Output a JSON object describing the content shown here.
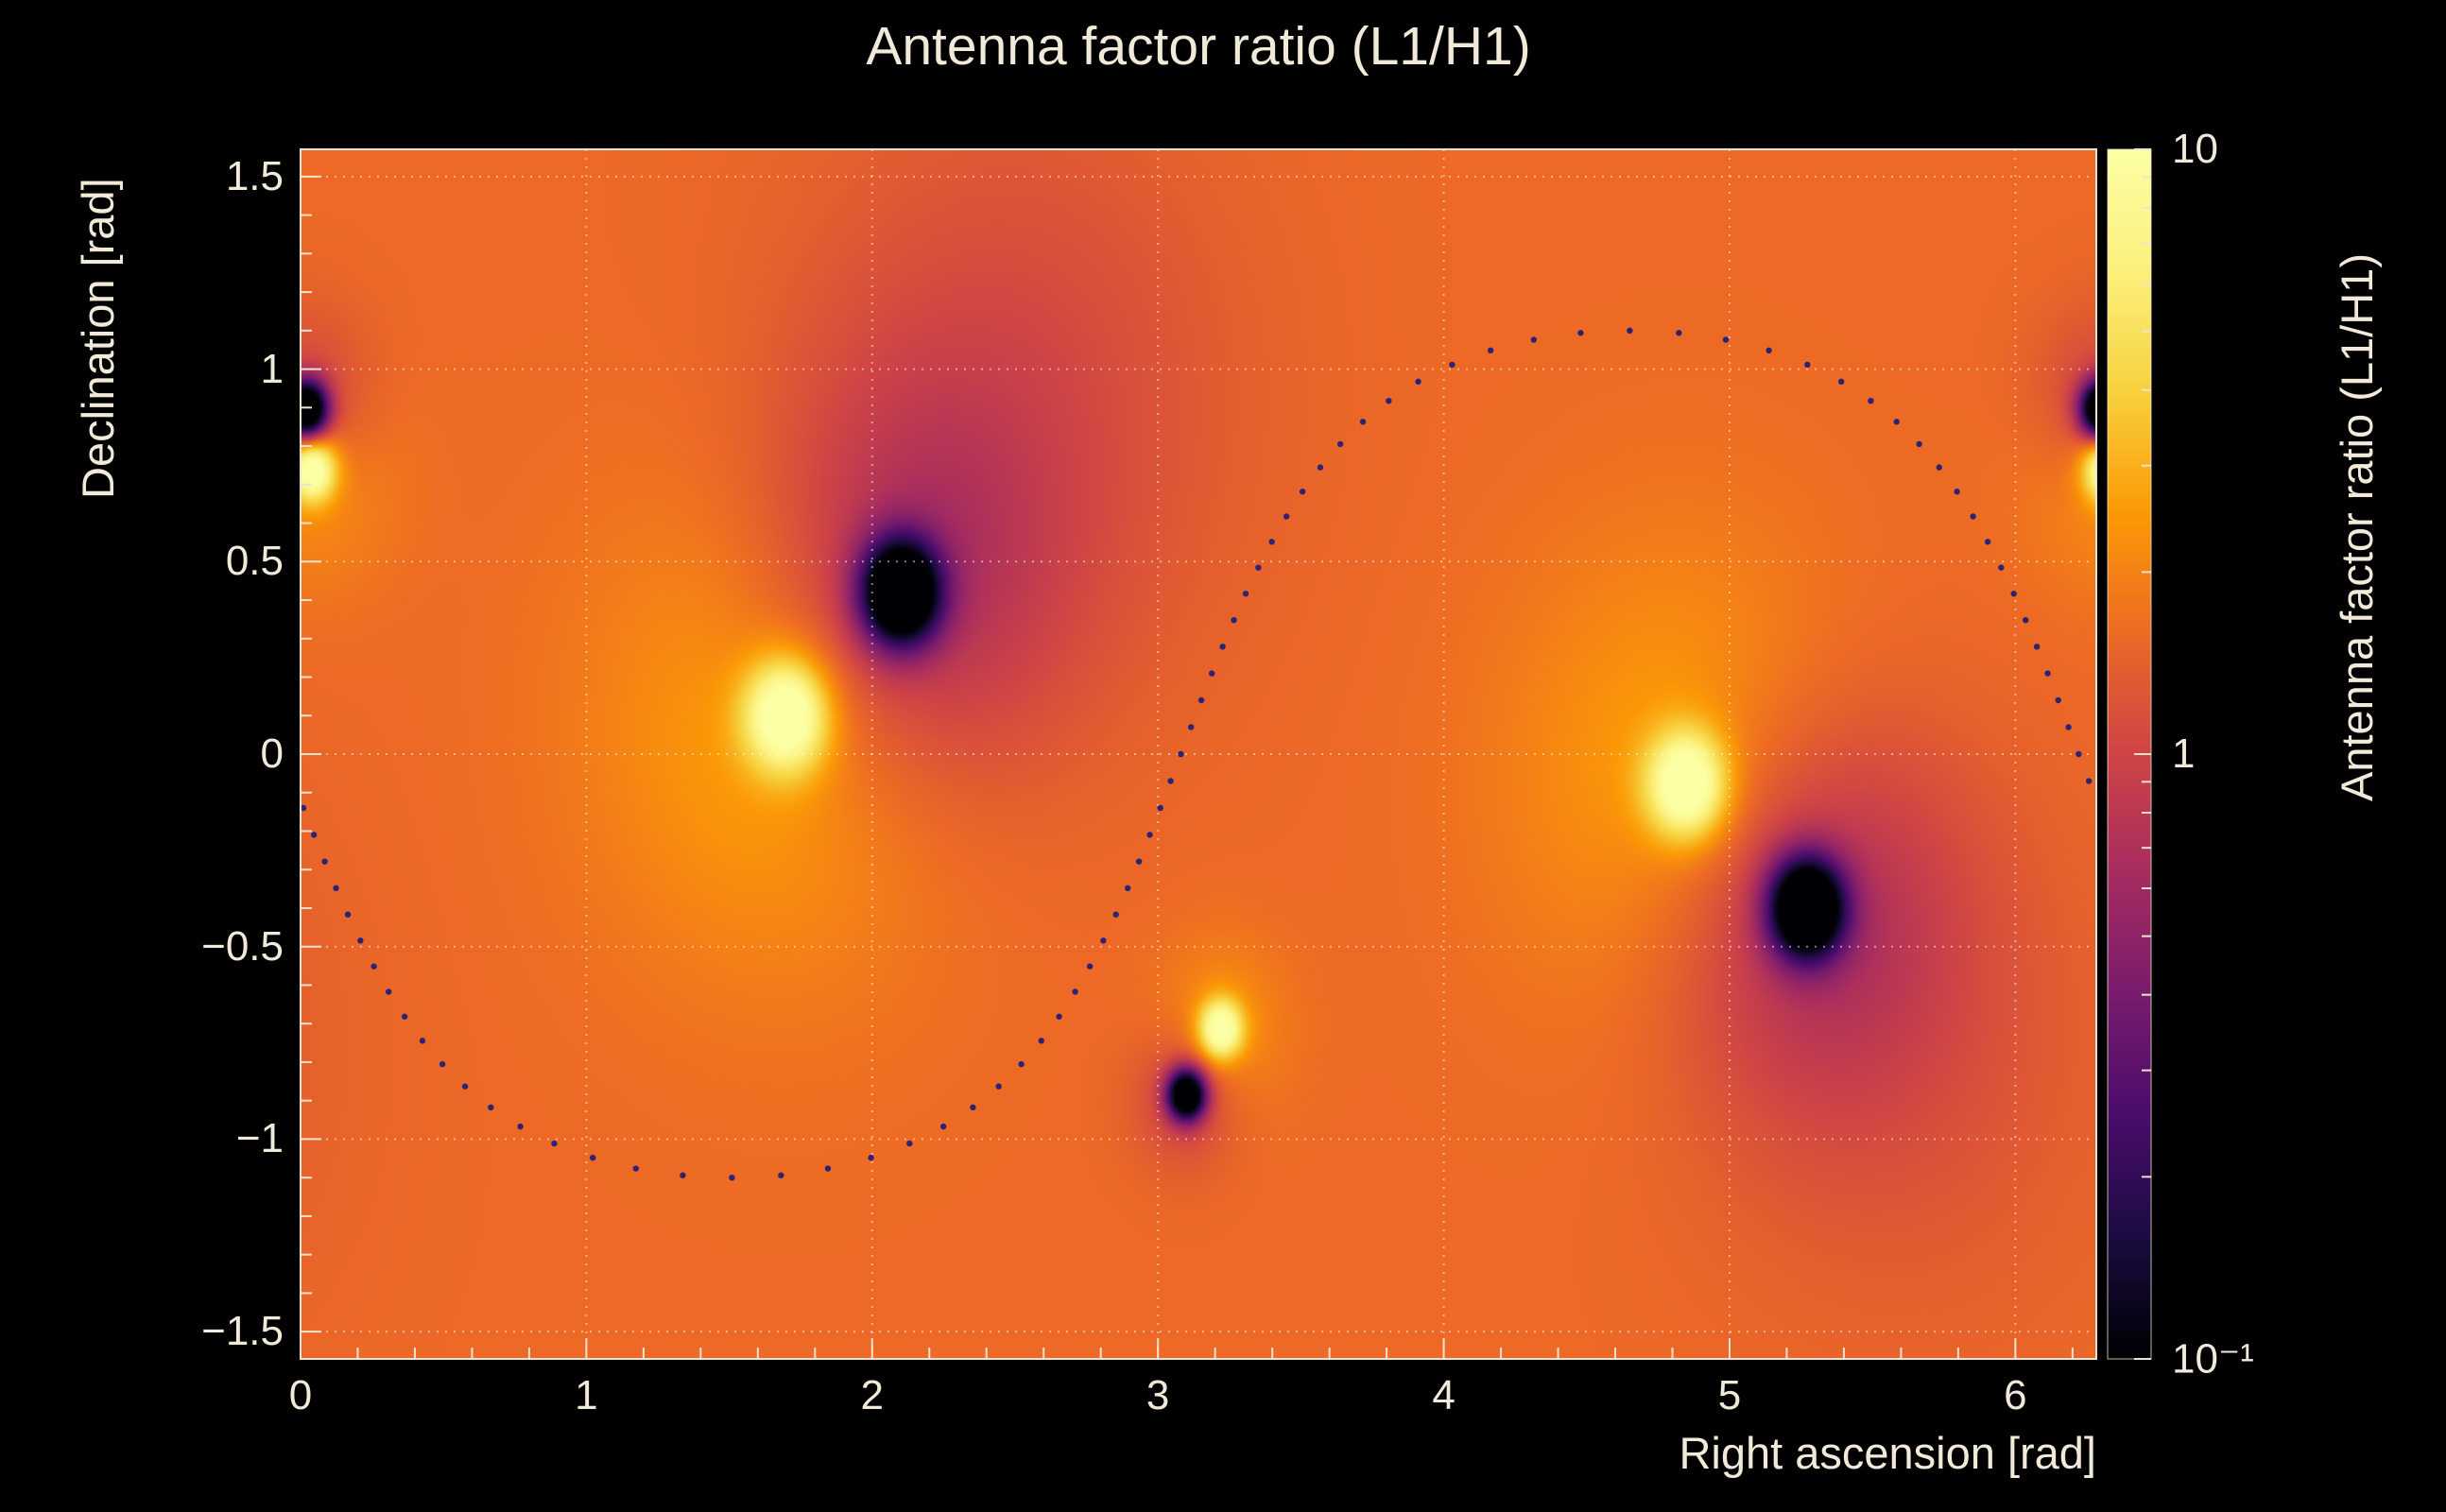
{
  "colors": {
    "background": "#000000",
    "text": "#f2ead8",
    "frame": "#ece4d0",
    "grid": "#ffffff",
    "curve_dots": "#20207a"
  },
  "chart_data": {
    "type": "heatmap",
    "title": "Antenna factor ratio (L1/H1)",
    "xlabel": "Right ascension [rad]",
    "ylabel": "Declination [rad]",
    "colorbar_label": "Antenna factor ratio (L1/H1)",
    "x_range": [
      0,
      6.28319
    ],
    "y_range": [
      -1.5708,
      1.5708
    ],
    "z_range": [
      0.1,
      10
    ],
    "z_scale": "log10",
    "x_tick_values": [
      0,
      1,
      2,
      3,
      4,
      5,
      6
    ],
    "x_tick_labels": [
      "0",
      "1",
      "2",
      "3",
      "4",
      "5",
      "6"
    ],
    "x_minor_step": 0.2,
    "y_tick_values": [
      1.5,
      1,
      0.5,
      0,
      -0.5,
      -1,
      -1.5
    ],
    "y_tick_labels": [
      "1.5",
      "1",
      "0.5",
      "0",
      "−0.5",
      "−1",
      "−1.5"
    ],
    "y_minor_step": 0.1,
    "colorbar_tick_values": [
      10,
      1,
      0.1
    ],
    "colorbar_tick_labels": [
      "10",
      "1",
      "10⁻¹"
    ],
    "colorbar_minor_ticks": [
      0.2,
      0.3,
      0.4,
      0.5,
      0.6,
      0.7,
      0.8,
      0.9,
      2,
      3,
      4,
      5,
      6,
      7,
      8,
      9
    ],
    "grid": {
      "style": "dotted",
      "color": "#ffffff",
      "opacity": 0.5
    },
    "palette": [
      [
        0.0,
        "#000004"
      ],
      [
        0.1,
        "#1b0c41"
      ],
      [
        0.2,
        "#4a0c6b"
      ],
      [
        0.3,
        "#781c6d"
      ],
      [
        0.4,
        "#a52c60"
      ],
      [
        0.5,
        "#cf4446"
      ],
      [
        0.6,
        "#ed6925"
      ],
      [
        0.7,
        "#fb9a06"
      ],
      [
        0.8,
        "#f7d13d"
      ],
      [
        0.9,
        "#fcf07c"
      ],
      [
        1.0,
        "#fcffa4"
      ]
    ],
    "field": {
      "base_log10": 0.2,
      "features": [
        {
          "name": "ratio-maximum-1",
          "ra": 1.7,
          "dec": 0.1,
          "core": 0.95,
          "cw": 0.1,
          "halo": 0.28,
          "hw": 0.45
        },
        {
          "name": "ratio-minimum-1",
          "ra": 2.1,
          "dec": 0.42,
          "core": -1.7,
          "cw": 0.095,
          "halo": -0.4,
          "hw": 0.38
        },
        {
          "name": "ratio-maximum-2",
          "ra": 4.85,
          "dec": -0.08,
          "core": 0.95,
          "cw": 0.095,
          "halo": 0.26,
          "hw": 0.42
        },
        {
          "name": "ratio-minimum-2",
          "ra": 5.27,
          "dec": -0.4,
          "core": -1.7,
          "cw": 0.09,
          "halo": -0.4,
          "hw": 0.36
        },
        {
          "name": "ratio-maximum-3",
          "ra": 3.22,
          "dec": -0.715,
          "core": 0.9,
          "cw": 0.052,
          "halo": 0.18,
          "hw": 0.16
        },
        {
          "name": "ratio-minimum-3",
          "ra": 3.1,
          "dec": -0.885,
          "core": -1.6,
          "cw": 0.046,
          "halo": -0.25,
          "hw": 0.13
        },
        {
          "name": "ratio-maximum-4",
          "ra": 0.04,
          "dec": 0.74,
          "core": 0.95,
          "cw": 0.058,
          "halo": 0.22,
          "hw": 0.2
        },
        {
          "name": "ratio-minimum-4",
          "ra": 0.02,
          "dec": 0.895,
          "core": -1.7,
          "cw": 0.052,
          "halo": -0.3,
          "hw": 0.17
        },
        {
          "name": "shade-upper-middle",
          "ra": 2.5,
          "dec": 0.95,
          "core": 0,
          "cw": 0.1,
          "halo": -0.16,
          "hw": 0.55
        },
        {
          "name": "shade-lower-right",
          "ra": 5.65,
          "dec": -0.8,
          "core": 0,
          "cw": 0.1,
          "halo": -0.1,
          "hw": 0.5
        }
      ]
    },
    "overlay_curve": {
      "name": "dotted-sky-track",
      "form": "great-circle",
      "inclination_rad": 1.1,
      "node_ra_rad": 3.08,
      "points": 80,
      "dot_radius": 3.2,
      "color": "#20207a"
    }
  }
}
